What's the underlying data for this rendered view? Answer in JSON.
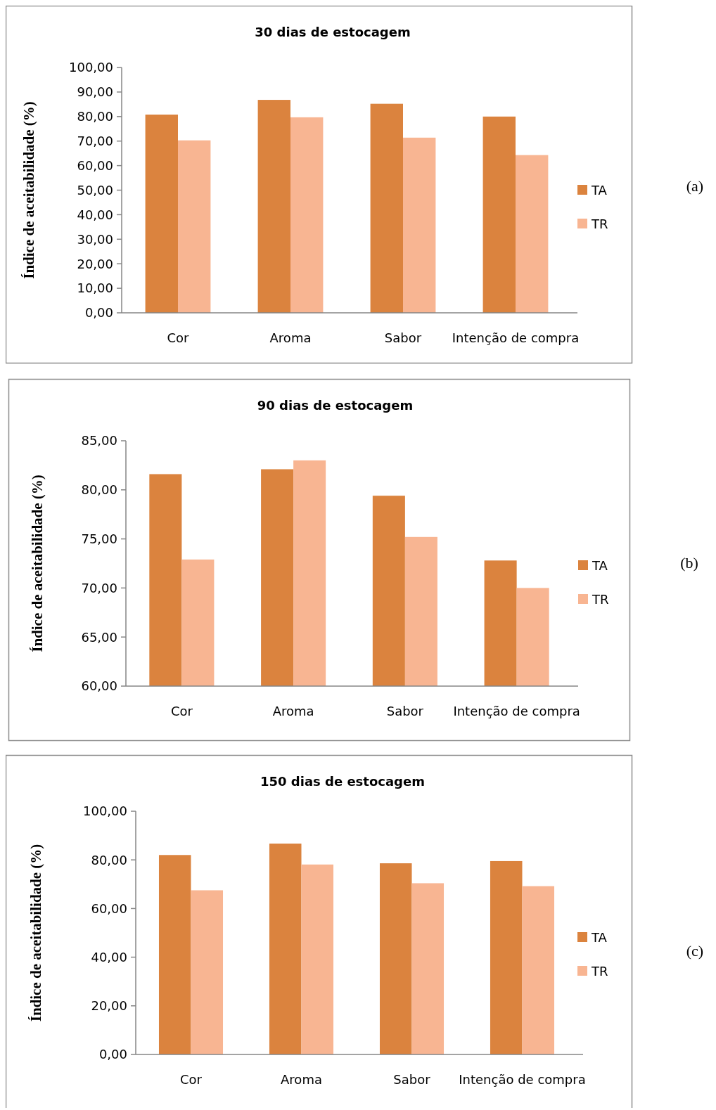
{
  "chart_data": [
    {
      "type": "bar",
      "title": "30 dias de estocagem",
      "ylabel": "Índice de aceitabilidade (%)",
      "categories": [
        "Cor",
        "Aroma",
        "Sabor",
        "Intenção de compra"
      ],
      "series": [
        {
          "name": "TA",
          "color": "#db833e",
          "values": [
            80.8,
            86.8,
            85.2,
            80.0
          ]
        },
        {
          "name": "TR",
          "color": "#f8b592",
          "values": [
            70.3,
            79.7,
            71.4,
            64.3
          ]
        }
      ],
      "ylim": [
        0,
        100
      ],
      "yticks": [
        {
          "value": 0,
          "label": "0,00"
        },
        {
          "value": 10,
          "label": "10,00"
        },
        {
          "value": 20,
          "label": "20,00"
        },
        {
          "value": 30,
          "label": "30,00"
        },
        {
          "value": 40,
          "label": "40,00"
        },
        {
          "value": 50,
          "label": "50,00"
        },
        {
          "value": 60,
          "label": "60,00"
        },
        {
          "value": 70,
          "label": "70,00"
        },
        {
          "value": 80,
          "label": "80,00"
        },
        {
          "value": 90,
          "label": "90,00"
        },
        {
          "value": 100,
          "label": "100,00"
        }
      ],
      "legend": "right",
      "annotations": [
        "(a)"
      ]
    },
    {
      "type": "bar",
      "title": "90 dias de estocagem",
      "ylabel": "Índice de aceitabilidade (%)",
      "categories": [
        "Cor",
        "Aroma",
        "Sabor",
        "Intenção de compra"
      ],
      "series": [
        {
          "name": "TA",
          "color": "#db833e",
          "values": [
            81.6,
            82.1,
            79.4,
            72.8
          ]
        },
        {
          "name": "TR",
          "color": "#f8b592",
          "values": [
            72.9,
            83.0,
            75.2,
            70.0
          ]
        }
      ],
      "ylim": [
        60,
        85
      ],
      "yticks": [
        {
          "value": 60,
          "label": "60,00"
        },
        {
          "value": 65,
          "label": "65,00"
        },
        {
          "value": 70,
          "label": "70,00"
        },
        {
          "value": 75,
          "label": "75,00"
        },
        {
          "value": 80,
          "label": "80,00"
        },
        {
          "value": 85,
          "label": "85,00"
        }
      ],
      "legend": "right",
      "annotations": [
        "(b)"
      ]
    },
    {
      "type": "bar",
      "title": "150 dias de estocagem",
      "ylabel": "Índice de aceitabilidade (%)",
      "categories": [
        "Cor",
        "Aroma",
        "Sabor",
        "Intenção de compra"
      ],
      "series": [
        {
          "name": "TA",
          "color": "#db833e",
          "values": [
            82.0,
            86.7,
            78.6,
            79.5
          ]
        },
        {
          "name": "TR",
          "color": "#f8b592",
          "values": [
            67.5,
            78.1,
            70.4,
            69.2
          ]
        }
      ],
      "ylim": [
        0,
        100
      ],
      "yticks": [
        {
          "value": 0,
          "label": "0,00"
        },
        {
          "value": 20,
          "label": "20,00"
        },
        {
          "value": 40,
          "label": "40,00"
        },
        {
          "value": 60,
          "label": "60,00"
        },
        {
          "value": 80,
          "label": "80,00"
        },
        {
          "value": 100,
          "label": "100,00"
        }
      ],
      "legend": "right",
      "annotations": [
        "(c)"
      ]
    }
  ]
}
